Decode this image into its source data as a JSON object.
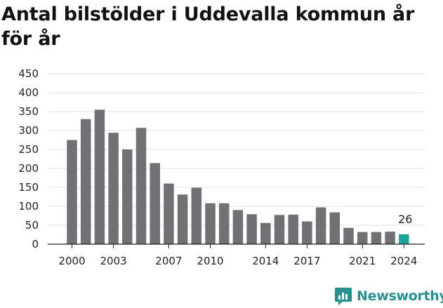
{
  "title": "Antal bilstölder i Uddevalla kommun år för år",
  "brand": {
    "name": "Newsworthy",
    "icon": "newsworthy-logo-icon",
    "color": "#2a8f8f"
  },
  "chart_data": {
    "type": "bar",
    "title": "Antal bilstölder i Uddevalla kommun år för år",
    "xlabel": "",
    "ylabel": "",
    "categories": [
      2000,
      2001,
      2002,
      2003,
      2004,
      2005,
      2006,
      2007,
      2008,
      2009,
      2010,
      2011,
      2012,
      2013,
      2014,
      2015,
      2016,
      2017,
      2018,
      2019,
      2020,
      2021,
      2022,
      2023,
      2024
    ],
    "values": [
      275,
      330,
      355,
      294,
      250,
      307,
      214,
      160,
      131,
      149,
      108,
      108,
      90,
      79,
      56,
      77,
      78,
      60,
      97,
      84,
      43,
      32,
      32,
      33,
      26
    ],
    "x_tick_labels": [
      "2000",
      "2003",
      "2007",
      "2010",
      "2014",
      "2017",
      "2021",
      "2024"
    ],
    "y_ticks": [
      0,
      50,
      100,
      150,
      200,
      250,
      300,
      350,
      400,
      450
    ],
    "ylim": [
      0,
      450
    ],
    "grid": true,
    "legend": "none",
    "bar_color": "#717075",
    "highlight_color": "#1aa39a",
    "highlight_category": 2024,
    "annotations": [
      {
        "category": 2024,
        "text": "26"
      }
    ]
  }
}
